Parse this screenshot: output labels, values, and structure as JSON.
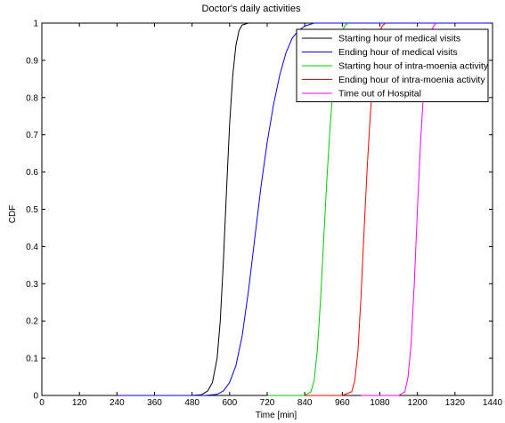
{
  "chart_data": {
    "type": "line",
    "title": "Doctor's daily activities",
    "xlabel": "Time [min]",
    "ylabel": "CDF",
    "xlim": [
      0,
      1440
    ],
    "ylim": [
      0,
      1
    ],
    "xticks": [
      0,
      120,
      240,
      360,
      480,
      600,
      720,
      840,
      960,
      1080,
      1200,
      1320,
      1440
    ],
    "yticks": [
      0,
      0.1,
      0.2,
      0.3,
      0.4,
      0.5,
      0.6,
      0.7,
      0.8,
      0.9,
      1
    ],
    "grid": false,
    "legend_position": "top-right",
    "series": [
      {
        "name": "Starting hour of medical visits",
        "color": "#000000",
        "x": [
          240,
          480,
          510,
          530,
          545,
          560,
          570,
          580,
          590,
          600,
          610,
          620,
          630,
          640,
          660,
          1440
        ],
        "y": [
          0,
          0,
          0.002,
          0.012,
          0.035,
          0.1,
          0.2,
          0.36,
          0.55,
          0.73,
          0.86,
          0.94,
          0.98,
          0.995,
          1,
          1
        ]
      },
      {
        "name": "Ending hour of medical visits",
        "color": "#0000ff",
        "x": [
          240,
          520,
          560,
          580,
          600,
          620,
          640,
          660,
          680,
          700,
          720,
          740,
          760,
          780,
          800,
          820,
          840,
          870,
          1440
        ],
        "y": [
          0,
          0,
          0.003,
          0.012,
          0.035,
          0.08,
          0.16,
          0.28,
          0.42,
          0.56,
          0.68,
          0.78,
          0.86,
          0.92,
          0.96,
          0.98,
          0.992,
          1,
          1
        ]
      },
      {
        "name": "Starting hour of intra-moenia activity",
        "color": "#00cc00",
        "x": [
          720,
          840,
          860,
          870,
          880,
          890,
          900,
          910,
          920,
          930,
          940,
          950,
          960,
          970,
          980
        ],
        "y": [
          0,
          0,
          0.01,
          0.04,
          0.12,
          0.25,
          0.41,
          0.57,
          0.71,
          0.82,
          0.9,
          0.95,
          0.98,
          0.995,
          1
        ]
      },
      {
        "name": "Ending hour of intra-moenia activity",
        "color": "#ff0000",
        "x": [
          840,
          960,
          990,
          1000,
          1010,
          1020,
          1030,
          1040,
          1050,
          1060,
          1070,
          1080,
          1090,
          1100
        ],
        "y": [
          0,
          0,
          0.01,
          0.04,
          0.12,
          0.27,
          0.45,
          0.62,
          0.76,
          0.87,
          0.94,
          0.98,
          0.995,
          1
        ]
      },
      {
        "name": "Time out of Hospital",
        "color": "#ff00ff",
        "x": [
          1020,
          1140,
          1160,
          1170,
          1180,
          1190,
          1200,
          1210,
          1220,
          1230,
          1240,
          1250,
          1260
        ],
        "y": [
          0,
          0,
          0.01,
          0.05,
          0.14,
          0.3,
          0.5,
          0.68,
          0.82,
          0.91,
          0.96,
          0.99,
          1
        ]
      }
    ]
  }
}
